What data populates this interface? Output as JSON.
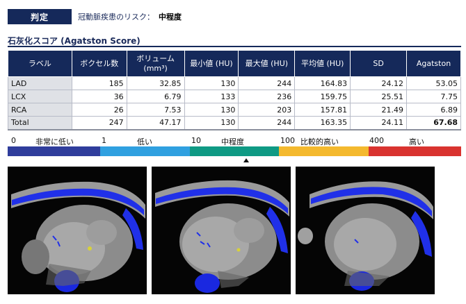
{
  "verdict": {
    "badge": "判定",
    "risk_label": "冠動脈疾患のリスク：",
    "risk_value": "中程度"
  },
  "section": {
    "title": "石灰化スコア (Agatston Score)"
  },
  "table": {
    "headers": [
      "ラベル",
      "ボクセル数",
      "ボリューム",
      "(mm³)",
      "最小値 (HU)",
      "最大値 (HU)",
      "平均値 (HU)",
      "SD",
      "Agatston"
    ],
    "rows": [
      [
        "LAD",
        "185",
        "32.85",
        "130",
        "244",
        "164.83",
        "24.12",
        "53.05"
      ],
      [
        "LCX",
        "36",
        "6.79",
        "133",
        "236",
        "159.75",
        "25.51",
        "7.75"
      ],
      [
        "RCA",
        "26",
        "7.53",
        "130",
        "203",
        "157.81",
        "21.49",
        "6.89"
      ],
      [
        "Total",
        "247",
        "47.17",
        "130",
        "244",
        "163.35",
        "24.11",
        "67.68"
      ]
    ]
  },
  "scale": {
    "labels": [
      "0",
      "非常に低い",
      "1",
      "低い",
      "10",
      "中程度",
      "100",
      "比較的高い",
      "400",
      "高い"
    ],
    "colors": [
      "#2f3d9c",
      "#2fa0e0",
      "#0f9a84",
      "#f4b92e",
      "#d9332f"
    ],
    "current_level": "中程度"
  },
  "images": [
    "ct-slice-1",
    "ct-slice-2",
    "ct-slice-3"
  ]
}
